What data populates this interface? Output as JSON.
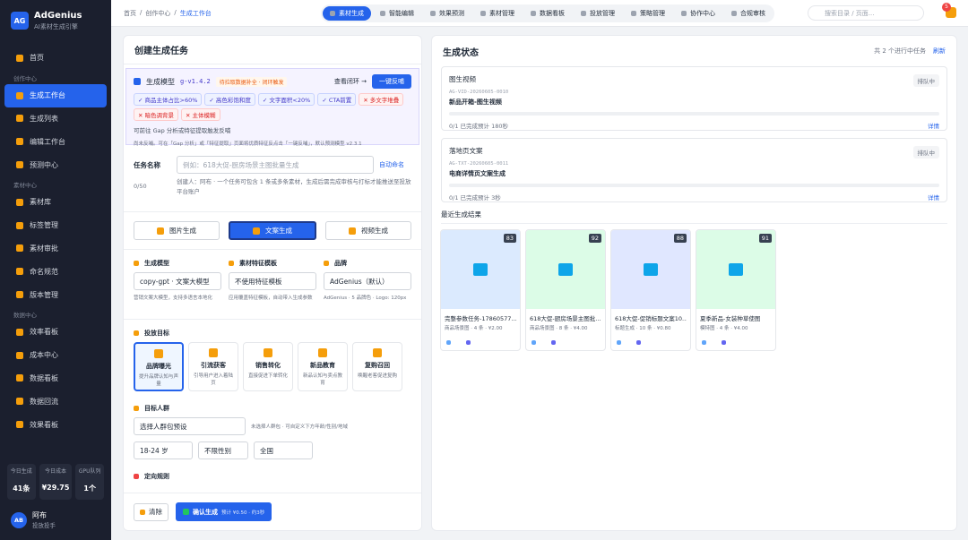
{
  "sidebar": {
    "logo": "AG",
    "brand": "AdGenius",
    "tagline": "AI素材生成引擎",
    "home": "首页",
    "sections": [
      {
        "title": "创作中心",
        "items": [
          "生成工作台",
          "生成列表",
          "编辑工作台",
          "预测中心"
        ]
      },
      {
        "title": "素材中心",
        "items": [
          "素材库",
          "标签管理",
          "素材审批",
          "命名规范",
          "版本管理"
        ]
      },
      {
        "title": "数据中心",
        "items": [
          "效率看板",
          "成本中心",
          "数据看板",
          "数据回流",
          "效果看板"
        ]
      }
    ],
    "stats": [
      {
        "label": "今日生成",
        "value": "41条"
      },
      {
        "label": "今日成本",
        "value": "¥29.75"
      },
      {
        "label": "GPU队列",
        "value": "1个"
      }
    ],
    "user": {
      "avatar": "AB",
      "name": "阿布",
      "role": "投放投手"
    }
  },
  "topbar": {
    "breadcrumb": [
      "首页",
      "创作中心",
      "生成工作台"
    ],
    "tabs": [
      "素材生成",
      "智能编辑",
      "效果预测",
      "素材管理",
      "数据看板",
      "投放管理",
      "策略管理",
      "协作中心",
      "合规审核"
    ],
    "search": "搜索目录 / 页面...",
    "notifications": 5
  },
  "create": {
    "title": "创建生成任务",
    "feedback": {
      "label": "生成模型",
      "version": "g-v1.4.2",
      "status": "待拉取数据补全 · 闭环触发",
      "loop": "查看闭环 →",
      "button": "一键反哺",
      "tags": [
        "✓ 商品主体占比>60%",
        "✓ 高色彩饱和度",
        "✓ 文字面积<20%",
        "✓ CTA前置",
        "✕ 多文字堆叠",
        "✕ 暗色调背景",
        "✕ 主体模糊"
      ],
      "hint": "可前往 Gap 分析或特征提取触发反哺",
      "note": "尚未反哺。可在「Gap 分析」或「特征提取」页面将优质特征反点击「一键反哺」，默认预测模型 v2.3.1"
    },
    "task_name": {
      "label": "任务名称",
      "placeholder": "例如：618大促-厨房场景主图批量生成",
      "auto": "自动命名",
      "count": "0/50",
      "note": "创建人：阿布 · 一个任务可包含 1 条或多条素材，生成后需完成审核与打标才能推送至投放平台账户"
    },
    "modes": [
      "图片生成",
      "文案生成",
      "视频生成"
    ],
    "fields": [
      {
        "label": "生成模型",
        "value": "copy-gpt · 文案大模型",
        "hint": "营销文案大模型，支持多语言本地化"
      },
      {
        "label": "素材特征模板",
        "value": "不使用特征模板",
        "hint": "应用覆盖特征模板，自动带入生成参数"
      },
      {
        "label": "品牌",
        "value": "AdGenius（默认）",
        "hint": "AdGenius · 5 品牌色 · Logo: 120px"
      }
    ],
    "goal": {
      "title": "投放目标",
      "options": [
        {
          "name": "品牌曝光",
          "desc": "提升品牌认知与声量"
        },
        {
          "name": "引流获客",
          "desc": "引导用户进入着陆页"
        },
        {
          "name": "销售转化",
          "desc": "直接促进下单转化"
        },
        {
          "name": "新品教育",
          "desc": "新品认知与卖点教育"
        },
        {
          "name": "复购召回",
          "desc": "唤醒老客促进复购"
        }
      ]
    },
    "audience": {
      "title": "目标人群",
      "preset": "选择人群包预设",
      "hint": "未选择人群包 · 可自定义下方年龄/性别/地域",
      "age": "18-24 岁",
      "gender": "不限性别",
      "region": "全国"
    },
    "targeting": "定向规则",
    "clear": "清除",
    "submit": "确认生成",
    "estimate": "预计 ¥0.50 · 约3秒"
  },
  "status": {
    "title": "生成状态",
    "summary": "共 2 个进行中任务",
    "refresh": "刷新",
    "tasks": [
      {
        "type": "图生视频",
        "state": "排队中",
        "id": "AG-VID-20260605-0010",
        "name": "新品开箱-图生视频",
        "progress": "0/1 已完成预计 180秒",
        "detail": "详情"
      },
      {
        "type": "落地页文案",
        "state": "排队中",
        "id": "AG-TXT-20260605-0011",
        "name": "电商详情页文案生成",
        "progress": "0/1 已完成预计 3秒",
        "detail": "详情"
      }
    ],
    "recent_title": "最近生成结果",
    "results": [
      {
        "score": 83,
        "name": "完整参数任务-17860577...",
        "meta": "商品场景图 · 4 条 · ¥2.00"
      },
      {
        "score": 92,
        "name": "618大促-厨房场景主图批...",
        "meta": "商品场景图 · 8 条 · ¥4.00"
      },
      {
        "score": 88,
        "name": "618大促-促销标题文案10...",
        "meta": "标题生成 · 10 条 · ¥0.80"
      },
      {
        "score": 91,
        "name": "夏季新品-女装种草使图",
        "meta": "模特图 · 4 条 · ¥4.00"
      }
    ]
  }
}
